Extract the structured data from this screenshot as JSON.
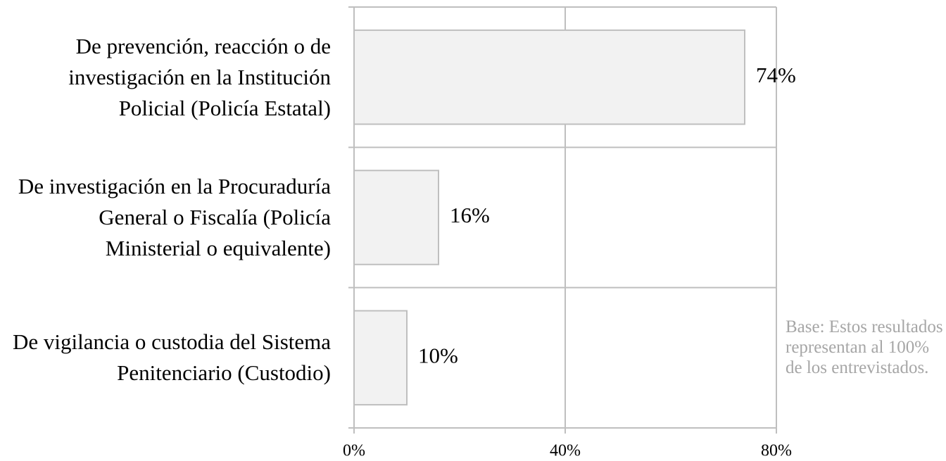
{
  "chart_data": {
    "type": "hbar",
    "categories": [
      "De prevención, reacción o de investigación en la Institución Policial (Policía Estatal)",
      "De investigación en la Procuraduría General o Fiscalía (Policía Ministerial o equivalente)",
      "De vigilancia o custodia del Sistema Penitenciario (Custodio)"
    ],
    "values": [
      74,
      16,
      10
    ],
    "value_labels": [
      "74%",
      "16%",
      "10%"
    ],
    "color": "#f2f2f2",
    "xlim": [
      0,
      80
    ],
    "xticks": [
      {
        "value": 0,
        "label": "0%"
      },
      {
        "value": 40,
        "label": "40%"
      },
      {
        "value": 80,
        "label": "80%"
      }
    ],
    "grid": true,
    "annotation": "Base: Estos resultados representan al 100% de los entrevistados."
  }
}
